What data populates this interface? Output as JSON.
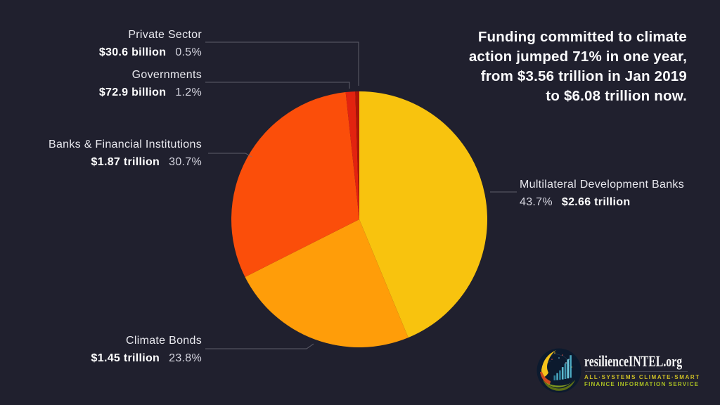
{
  "page": {
    "background": "#20202E"
  },
  "headline": {
    "lines": [
      "Funding committed to climate",
      "action jumped 71% in one year,",
      "from $3.56 trillion in Jan 2019",
      "to $6.08 trillion now."
    ],
    "color": "#FFFFFF"
  },
  "chart_data": {
    "type": "pie",
    "title": "",
    "direction": "clockwise",
    "start_angle_deg": 0,
    "slices": [
      {
        "label": "Multilateral Development Banks",
        "percent": 43.7,
        "amount": "$2.66 trillion",
        "color": "#F8C30E"
      },
      {
        "label": "Climate Bonds",
        "percent": 23.8,
        "amount": "$1.45 trillion",
        "color": "#FF9D09"
      },
      {
        "label": "Banks & Financial Institutions",
        "percent": 30.7,
        "amount": "$1.87 trillion",
        "color": "#FB4E0A"
      },
      {
        "label": "Governments",
        "percent": 1.2,
        "amount": "$72.9 billion",
        "color": "#E2230F"
      },
      {
        "label": "Private Sector",
        "percent": 0.5,
        "amount": "$30.6 billion",
        "color": "#AD1407"
      }
    ],
    "legend_position": "callouts",
    "leader_line_color": "#73737F"
  },
  "callouts": {
    "private_sector": {
      "name": "Private Sector",
      "amount": "$30.6 billion",
      "percent": "0.5%"
    },
    "governments": {
      "name": "Governments",
      "amount": "$72.9 billion",
      "percent": "1.2%"
    },
    "banks": {
      "name": "Banks & Financial Institutions",
      "amount": "$1.87 trillion",
      "percent": "30.7%"
    },
    "multilateral": {
      "name": "Multilateral Development Banks",
      "percent": "43.7%",
      "amount": "$2.66 trillion"
    },
    "climate_bonds": {
      "name": "Climate Bonds",
      "amount": "$1.45 trillion",
      "percent": "23.8%"
    }
  },
  "logo": {
    "brand": "resilienceINTEL.org",
    "tagline_line1": "ALL·SYSTEMS CLIMATE·SMART",
    "tagline_line2": "FINANCE INFORMATION SERVICE"
  }
}
